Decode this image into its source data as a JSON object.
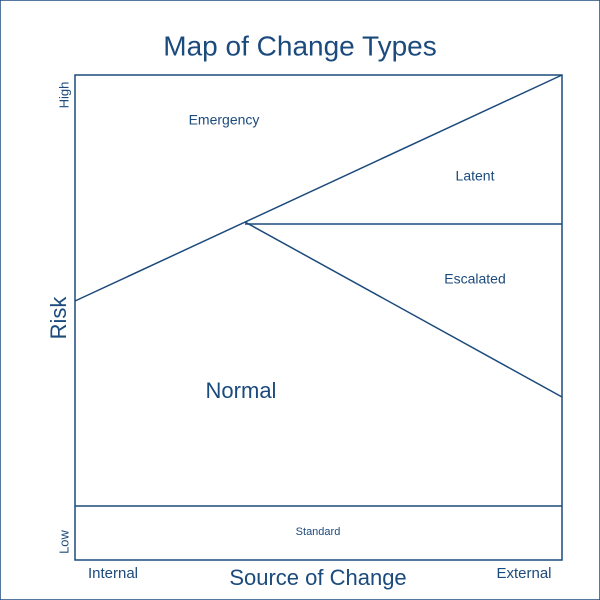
{
  "title": "Map of Change Types",
  "axes": {
    "y_label": "Risk",
    "y_high": "High",
    "y_low": "Low",
    "x_label": "Source of Change",
    "x_left": "Internal",
    "x_right": "External"
  },
  "regions": [
    {
      "label": "Emergency"
    },
    {
      "label": "Latent"
    },
    {
      "label": "Escalated"
    },
    {
      "label": "Normal"
    },
    {
      "label": "Standard"
    }
  ]
}
